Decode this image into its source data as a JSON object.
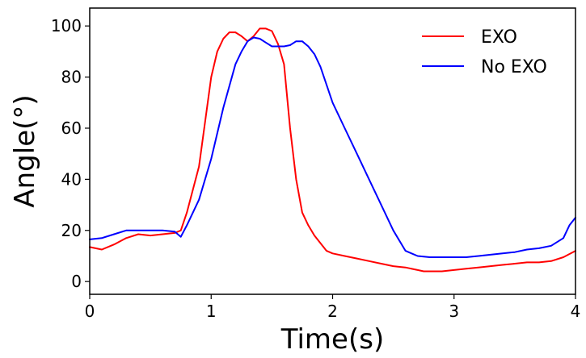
{
  "chart_data": {
    "type": "line",
    "title": "",
    "xlabel": "Time(s)",
    "ylabel": "Angle(°)",
    "xlim": [
      0,
      4
    ],
    "ylim": [
      -5,
      107
    ],
    "xticks": [
      0,
      1,
      2,
      3,
      4
    ],
    "yticks": [
      0,
      20,
      40,
      60,
      80,
      100
    ],
    "grid": false,
    "legend_position": "top-right",
    "series": [
      {
        "name": "EXO",
        "color": "#ff0000",
        "x": [
          0,
          0.1,
          0.2,
          0.3,
          0.4,
          0.5,
          0.6,
          0.7,
          0.75,
          0.8,
          0.9,
          1.0,
          1.05,
          1.1,
          1.15,
          1.2,
          1.25,
          1.3,
          1.35,
          1.4,
          1.45,
          1.5,
          1.55,
          1.6,
          1.65,
          1.7,
          1.75,
          1.8,
          1.85,
          1.9,
          1.95,
          2.0,
          2.1,
          2.2,
          2.3,
          2.4,
          2.5,
          2.6,
          2.7,
          2.75,
          2.8,
          2.9,
          3.0,
          3.1,
          3.2,
          3.3,
          3.4,
          3.5,
          3.6,
          3.7,
          3.8,
          3.9,
          4.0
        ],
        "y": [
          13.5,
          12.5,
          14.5,
          17,
          18.5,
          18,
          18.5,
          19,
          20,
          27,
          45,
          80,
          90,
          95,
          97.5,
          97.5,
          96,
          94,
          96,
          99,
          99,
          98,
          93,
          85,
          60,
          40,
          27,
          22,
          18,
          15,
          12,
          11,
          10,
          9,
          8,
          7,
          6,
          5.5,
          4.5,
          4,
          4,
          4,
          4.5,
          5,
          5.5,
          6,
          6.5,
          7,
          7.5,
          7.5,
          8,
          9.5,
          12
        ]
      },
      {
        "name": "No EXO",
        "color": "#0000ff",
        "x": [
          0,
          0.1,
          0.2,
          0.3,
          0.4,
          0.5,
          0.6,
          0.7,
          0.75,
          0.8,
          0.9,
          1.0,
          1.1,
          1.2,
          1.25,
          1.3,
          1.35,
          1.4,
          1.45,
          1.5,
          1.55,
          1.6,
          1.65,
          1.7,
          1.75,
          1.8,
          1.85,
          1.9,
          2.0,
          2.1,
          2.2,
          2.3,
          2.4,
          2.5,
          2.6,
          2.65,
          2.7,
          2.8,
          2.9,
          3.0,
          3.1,
          3.2,
          3.3,
          3.4,
          3.5,
          3.6,
          3.7,
          3.8,
          3.9,
          3.95,
          4.0
        ],
        "y": [
          16.5,
          17,
          18.5,
          20,
          20,
          20,
          20,
          19.5,
          17.5,
          22,
          32,
          48,
          68,
          85,
          90,
          94,
          95.5,
          95,
          93.5,
          92,
          92,
          92,
          92.5,
          94,
          94,
          92,
          89,
          84,
          70,
          60,
          50,
          40,
          30,
          20,
          12,
          11,
          10,
          9.5,
          9.5,
          9.5,
          9.5,
          10,
          10.5,
          11,
          11.5,
          12.5,
          13,
          14,
          17,
          22,
          25
        ]
      }
    ]
  }
}
